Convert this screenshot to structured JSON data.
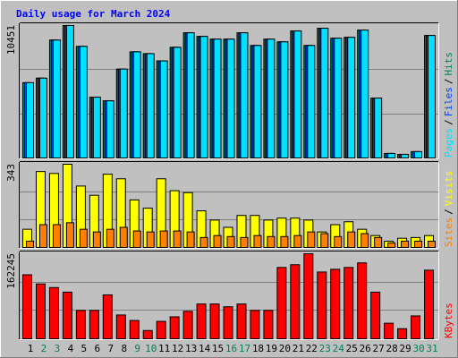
{
  "title": "Daily usage for March 2024",
  "legend_separator": "/",
  "chart_data": [
    {
      "type": "bar",
      "ylim": [
        0,
        10451
      ],
      "yticks": [
        10451
      ],
      "grid": true,
      "series": [
        {
          "name": "Hits",
          "color": "#00805c",
          "values": [
            5941,
            6299,
            9306,
            10451,
            8805,
            4796,
            4510,
            7015,
            8375,
            8232,
            7659,
            8733,
            9878,
            9592,
            9377,
            9377,
            9878,
            8876,
            9377,
            9162,
            10021,
            8876,
            10236,
            9449,
            9520,
            10093,
            4724,
            358,
            286,
            501,
            9664
          ]
        },
        {
          "name": "Files",
          "color": "#0040ff",
          "values": [
            5941,
            6299,
            9306,
            10451,
            8805,
            4796,
            4510,
            7015,
            8375,
            8232,
            7659,
            8733,
            9878,
            9592,
            9377,
            9377,
            9878,
            8876,
            9377,
            9162,
            10021,
            8876,
            10236,
            9449,
            9520,
            10093,
            4724,
            358,
            286,
            501,
            9664
          ]
        },
        {
          "name": "Pages",
          "color": "#00e0ff",
          "values": [
            5941,
            6299,
            9306,
            10451,
            8805,
            4796,
            4510,
            7015,
            8375,
            8232,
            7659,
            8733,
            9878,
            9592,
            9377,
            9377,
            9878,
            8876,
            9377,
            9162,
            10021,
            8876,
            10236,
            9449,
            9520,
            10093,
            4724,
            358,
            286,
            501,
            9664
          ]
        }
      ]
    },
    {
      "type": "bar",
      "ylim": [
        0,
        343
      ],
      "yticks": [
        343
      ],
      "grid": true,
      "series": [
        {
          "name": "Visits",
          "color": "#ffff00",
          "values": [
            75,
            313,
            305,
            343,
            253,
            215,
            302,
            283,
            196,
            162,
            283,
            234,
            226,
            151,
            113,
            83,
            132,
            132,
            113,
            121,
            121,
            113,
            64,
            94,
            106,
            75,
            49,
            26,
            38,
            41,
            49
          ]
        },
        {
          "name": "Sites",
          "color": "#ff8000",
          "values": [
            26,
            94,
            94,
            102,
            75,
            64,
            75,
            83,
            68,
            64,
            68,
            68,
            64,
            41,
            49,
            45,
            41,
            49,
            45,
            45,
            49,
            64,
            57,
            45,
            64,
            57,
            41,
            19,
            26,
            26,
            26
          ]
        }
      ]
    },
    {
      "type": "bar",
      "ylim": [
        0,
        162245
      ],
      "yticks": [
        162245
      ],
      "grid": true,
      "categories": [
        "1",
        "2",
        "3",
        "4",
        "5",
        "6",
        "7",
        "8",
        "9",
        "10",
        "11",
        "12",
        "13",
        "14",
        "15",
        "16",
        "17",
        "18",
        "19",
        "20",
        "21",
        "22",
        "23",
        "24",
        "25",
        "26",
        "27",
        "28",
        "29",
        "30",
        "31"
      ],
      "category_colors": [
        "#000000",
        "#00805c",
        "#00805c",
        "#000000",
        "#000000",
        "#000000",
        "#000000",
        "#000000",
        "#00805c",
        "#00805c",
        "#000000",
        "#000000",
        "#000000",
        "#000000",
        "#000000",
        "#00805c",
        "#00805c",
        "#000000",
        "#000000",
        "#000000",
        "#000000",
        "#000000",
        "#00805c",
        "#00805c",
        "#000000",
        "#000000",
        "#000000",
        "#000000",
        "#000000",
        "#00805c",
        "#00805c"
      ],
      "series": [
        {
          "name": "KBytes",
          "color": "#ff0000",
          "values": [
            122122,
            104674,
            97696,
            88973,
            54082,
            54082,
            83739,
            45359,
            34891,
            15701,
            33147,
            41870,
            52337,
            66293,
            66293,
            61060,
            66293,
            54082,
            54082,
            136076,
            141310,
            162245,
            127353,
            132587,
            136076,
            144799,
            88973,
            29658,
            19190,
            43614,
            130843
          ]
        }
      ]
    }
  ]
}
